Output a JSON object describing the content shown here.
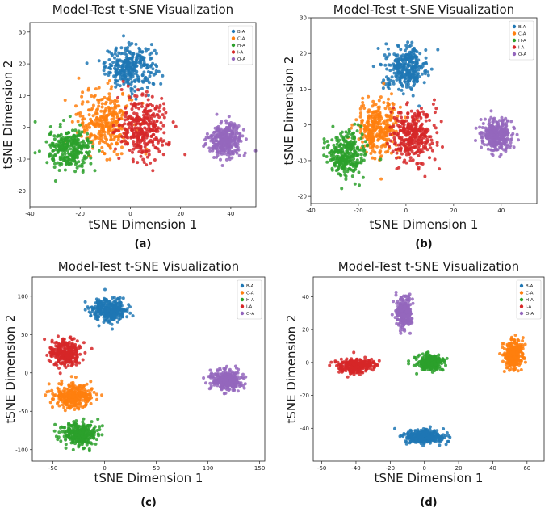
{
  "colors": {
    "B-A": "#1f77b4",
    "C-A": "#ff7f0e",
    "H-A": "#2ca02c",
    "I-A": "#d62728",
    "O-A": "#9467bd"
  },
  "chart_data": [
    {
      "type": "scatter",
      "title": "Model-Test t-SNE Visualization",
      "xlabel": "tSNE Dimension 1",
      "ylabel": "tSNE Dimension 2",
      "caption": "(a)",
      "xlim": [
        -40,
        50
      ],
      "ylim": [
        -25,
        33
      ],
      "xticks": [
        -40,
        -20,
        0,
        20,
        40
      ],
      "yticks": [
        -20,
        -10,
        0,
        10,
        20,
        30
      ],
      "legend_position": "top-right",
      "series": [
        {
          "name": "B-A",
          "cx": 0,
          "cy": 19,
          "sx": 9,
          "sy": 6,
          "n": 300
        },
        {
          "name": "C-A",
          "cx": -10,
          "cy": 2,
          "sx": 10,
          "sy": 9,
          "n": 300
        },
        {
          "name": "H-A",
          "cx": -24,
          "cy": -7,
          "sx": 8,
          "sy": 6,
          "n": 280
        },
        {
          "name": "I-A",
          "cx": 5,
          "cy": 0,
          "sx": 9,
          "sy": 9,
          "n": 320
        },
        {
          "name": "O-A",
          "cx": 38,
          "cy": -4,
          "sx": 6,
          "sy": 4.5,
          "n": 320
        }
      ]
    },
    {
      "type": "scatter",
      "title": "Model-Test t-SNE Visualization",
      "xlabel": "tSNE Dimension 1",
      "ylabel": "tSNE Dimension 2",
      "caption": "(b)",
      "xlim": [
        -40,
        55
      ],
      "ylim": [
        -22,
        30
      ],
      "xticks": [
        -40,
        -20,
        0,
        20,
        40
      ],
      "yticks": [
        -20,
        -10,
        0,
        10,
        20,
        30
      ],
      "legend_position": "top-right",
      "series": [
        {
          "name": "B-A",
          "cx": 0,
          "cy": 16,
          "sx": 8,
          "sy": 5.5,
          "n": 300
        },
        {
          "name": "C-A",
          "cx": -12,
          "cy": -1,
          "sx": 8,
          "sy": 7,
          "n": 300
        },
        {
          "name": "H-A",
          "cx": -25,
          "cy": -8,
          "sx": 7,
          "sy": 5.5,
          "n": 280
        },
        {
          "name": "I-A",
          "cx": 3,
          "cy": -3,
          "sx": 8,
          "sy": 7,
          "n": 320
        },
        {
          "name": "O-A",
          "cx": 38,
          "cy": -3,
          "sx": 6,
          "sy": 4.5,
          "n": 320
        }
      ]
    },
    {
      "type": "scatter",
      "title": "Model-Test t-SNE Visualization",
      "xlabel": "tSNE Dimension 1",
      "ylabel": "tSNE Dimension 2",
      "caption": "(c)",
      "xlim": [
        -70,
        155
      ],
      "ylim": [
        -115,
        125
      ],
      "xticks": [
        -50,
        0,
        50,
        100,
        150
      ],
      "yticks": [
        -100,
        -50,
        0,
        50,
        100
      ],
      "legend_position": "top-right",
      "series": [
        {
          "name": "B-A",
          "cx": 5,
          "cy": 82,
          "sx": 16,
          "sy": 14,
          "n": 300
        },
        {
          "name": "C-A",
          "cx": -30,
          "cy": -30,
          "sx": 17,
          "sy": 14,
          "n": 300
        },
        {
          "name": "H-A",
          "cx": -25,
          "cy": -80,
          "sx": 15,
          "sy": 13,
          "n": 300
        },
        {
          "name": "I-A",
          "cx": -38,
          "cy": 25,
          "sx": 14,
          "sy": 16,
          "n": 300
        },
        {
          "name": "O-A",
          "cx": 118,
          "cy": -10,
          "sx": 13,
          "sy": 12,
          "n": 320
        }
      ]
    },
    {
      "type": "scatter",
      "title": "Model-Test t-SNE Visualization",
      "xlabel": "tSNE Dimension 1",
      "ylabel": "tSNE Dimension 2",
      "caption": "(d)",
      "xlim": [
        -65,
        70
      ],
      "ylim": [
        -60,
        52
      ],
      "xticks": [
        -60,
        -40,
        -20,
        0,
        20,
        40,
        60
      ],
      "yticks": [
        -40,
        -20,
        0,
        20,
        40
      ],
      "legend_position": "top-right",
      "series": [
        {
          "name": "B-A",
          "cx": 0,
          "cy": -45,
          "sx": 11,
          "sy": 4,
          "n": 300
        },
        {
          "name": "C-A",
          "cx": 52,
          "cy": 5,
          "sx": 5,
          "sy": 8,
          "n": 300
        },
        {
          "name": "H-A",
          "cx": 3,
          "cy": 0,
          "sx": 7,
          "sy": 4,
          "n": 300
        },
        {
          "name": "I-A",
          "cx": -40,
          "cy": -2,
          "sx": 10,
          "sy": 4,
          "n": 300
        },
        {
          "name": "O-A",
          "cx": -12,
          "cy": 30,
          "sx": 4,
          "sy": 9,
          "n": 280
        }
      ]
    }
  ]
}
